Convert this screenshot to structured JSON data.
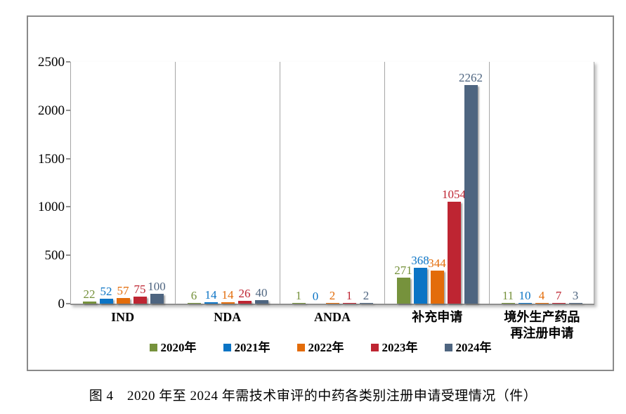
{
  "caption": "图 4　2020 年至 2024 年需技术审评的中药各类别注册申请受理情况（件）",
  "chart_data": {
    "type": "bar",
    "title": "",
    "xlabel": "",
    "ylabel": "",
    "ylim": [
      0,
      2500
    ],
    "yticks": [
      0,
      500,
      1000,
      1500,
      2000,
      2500
    ],
    "grid": "vertical-category-separators-only",
    "legend_position": "bottom",
    "categories": [
      "IND",
      "NDA",
      "ANDA",
      "补充申请",
      "境外生产药品\n再注册申请"
    ],
    "series": [
      {
        "name": "2020年",
        "color": "#76923C",
        "values": [
          22,
          6,
          1,
          271,
          11
        ]
      },
      {
        "name": "2021年",
        "color": "#0B74C5",
        "values": [
          52,
          14,
          0,
          368,
          10
        ]
      },
      {
        "name": "2022年",
        "color": "#E36C0A",
        "values": [
          57,
          14,
          2,
          344,
          4
        ]
      },
      {
        "name": "2023年",
        "color": "#BE2532",
        "values": [
          75,
          26,
          1,
          1054,
          7
        ]
      },
      {
        "name": "2024年",
        "color": "#4E6580",
        "values": [
          100,
          40,
          2,
          2262,
          3
        ]
      }
    ]
  }
}
